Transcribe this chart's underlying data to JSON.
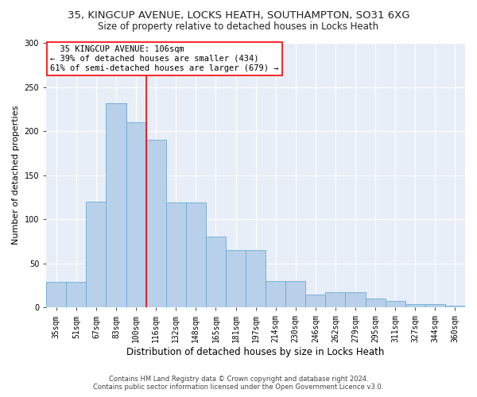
{
  "title1": "35, KINGCUP AVENUE, LOCKS HEATH, SOUTHAMPTON, SO31 6XG",
  "title2": "Size of property relative to detached houses in Locks Heath",
  "xlabel": "Distribution of detached houses by size in Locks Heath",
  "ylabel": "Number of detached properties",
  "footer1": "Contains HM Land Registry data © Crown copyright and database right 2024.",
  "footer2": "Contains public sector information licensed under the Open Government Licence v3.0.",
  "categories": [
    "35sqm",
    "51sqm",
    "67sqm",
    "83sqm",
    "100sqm",
    "116sqm",
    "132sqm",
    "148sqm",
    "165sqm",
    "181sqm",
    "197sqm",
    "214sqm",
    "230sqm",
    "246sqm",
    "262sqm",
    "279sqm",
    "295sqm",
    "311sqm",
    "327sqm",
    "344sqm",
    "360sqm"
  ],
  "values": [
    29,
    29,
    120,
    232,
    210,
    190,
    119,
    119,
    80,
    65,
    65,
    30,
    30,
    15,
    17,
    17,
    10,
    7,
    4,
    4,
    2
  ],
  "bar_color": "#b8d0ea",
  "bar_edge_color": "#6aaad4",
  "vline_x": 4.5,
  "vline_color": "red",
  "annotation_line1": "  35 KINGCUP AVENUE: 106sqm",
  "annotation_line2": "← 39% of detached houses are smaller (434)",
  "annotation_line3": "61% of semi-detached houses are larger (679) →",
  "annotation_box_color": "white",
  "annotation_box_edge": "red",
  "ylim": [
    0,
    300
  ],
  "yticks": [
    0,
    50,
    100,
    150,
    200,
    250,
    300
  ],
  "bg_color": "#e8eef8",
  "grid_color": "white",
  "title_fontsize": 9.5,
  "subtitle_fontsize": 8.5,
  "xlabel_fontsize": 8.5,
  "ylabel_fontsize": 8.0,
  "tick_fontsize": 7.0,
  "annot_fontsize": 7.5,
  "footer_fontsize": 6.0
}
